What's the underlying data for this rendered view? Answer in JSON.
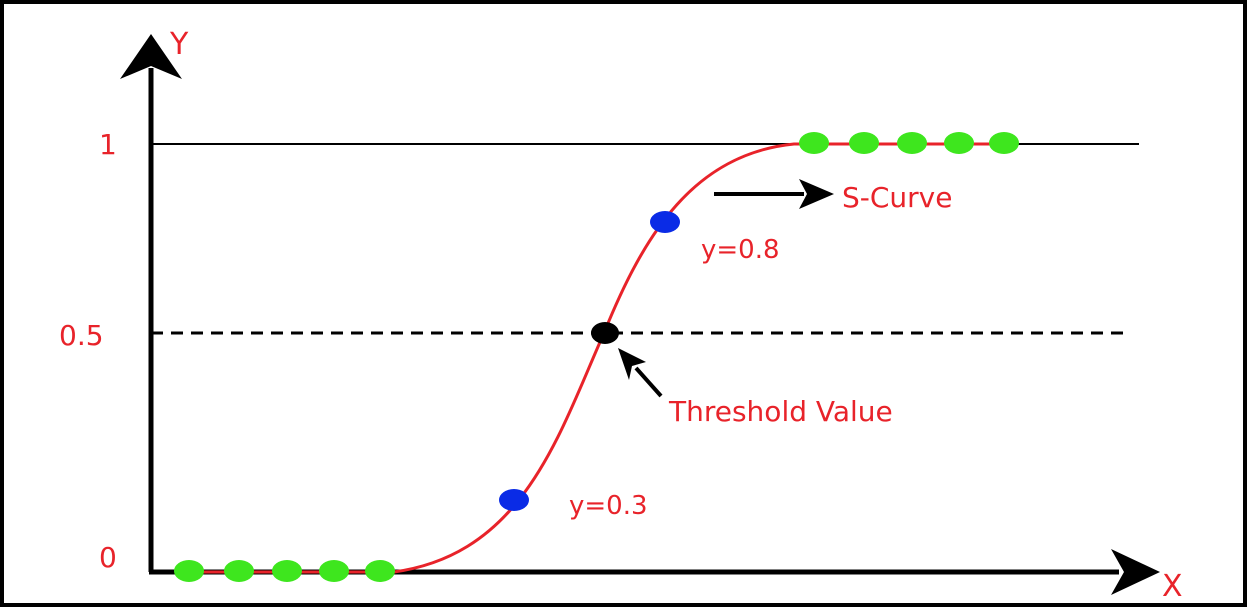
{
  "axes": {
    "x_label": "X",
    "y_label": "Y"
  },
  "y_ticks": [
    {
      "value": 0,
      "label": "0"
    },
    {
      "value": 0.5,
      "label": "0.5"
    },
    {
      "value": 1,
      "label": "1"
    }
  ],
  "reference_lines": {
    "top_line_value": 1,
    "threshold_value": 0.5
  },
  "points": {
    "low_green": 5,
    "high_green": 5,
    "blue_low_label": "y=0.3",
    "blue_high_label": "y=0.8"
  },
  "annotations": {
    "curve": "S-Curve",
    "threshold": "Threshold Value"
  },
  "colors": {
    "axis": "#000000",
    "curve": "#e8232a",
    "tick_text": "#e8232a",
    "annotation_text": "#e8232a",
    "green_point": "#3ee61e",
    "blue_point": "#0a2be6",
    "threshold_point": "#000000"
  }
}
